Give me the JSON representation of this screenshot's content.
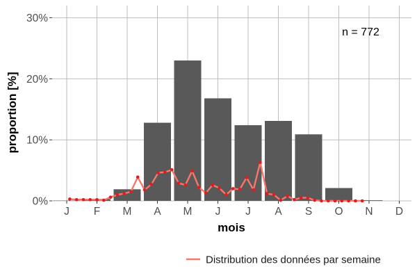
{
  "chart_data": {
    "type": "bar",
    "categories": [
      "J",
      "F",
      "M",
      "A",
      "M",
      "J",
      "J",
      "A",
      "S",
      "O",
      "N",
      "D"
    ],
    "values": [
      0.05,
      0.3,
      1.9,
      12.8,
      23.0,
      16.8,
      12.4,
      13.1,
      10.9,
      2.1,
      0.1,
      0
    ],
    "ylim": [
      0,
      32
    ],
    "yticks": [
      0,
      10,
      20,
      30
    ],
    "ytick_labels": [
      "0%",
      "10%",
      "20%",
      "30%"
    ],
    "xlabel": "mois",
    "ylabel": "proportion [%]",
    "annotation": "n = 772",
    "bar_color": "#595959",
    "grid": true,
    "legend_position": "bottom-right",
    "series": [
      {
        "name": "Distribution des données par semaine",
        "type": "line",
        "color": "#f8766d",
        "point_color": "#e41a1c",
        "x": [
          1.1,
          1.325,
          1.55,
          1.775,
          2.0,
          2.225,
          2.45,
          2.675,
          2.9,
          3.125,
          3.35,
          3.575,
          3.8,
          4.025,
          4.25,
          4.475,
          4.7,
          4.925,
          5.15,
          5.375,
          5.6,
          5.825,
          6.05,
          6.275,
          6.5,
          6.725,
          6.95,
          7.175,
          7.4,
          7.625,
          7.85,
          8.075,
          8.3,
          8.525,
          8.75,
          8.975,
          9.2,
          9.425,
          9.65,
          9.875,
          10.1,
          10.325,
          10.55,
          10.775
        ],
        "values": [
          0.3,
          0.2,
          0.2,
          0.2,
          0.2,
          0.1,
          0.6,
          1.0,
          1.2,
          1.5,
          3.9,
          1.8,
          2.7,
          4.6,
          4.7,
          5.1,
          2.9,
          2.6,
          4.9,
          2.2,
          1.3,
          2.6,
          2.1,
          1.0,
          2.0,
          1.9,
          3.8,
          1.8,
          6.3,
          1.2,
          1.0,
          0.1,
          0.8,
          0.2,
          0.5,
          0.5,
          0.1,
          0,
          0,
          0,
          0,
          0,
          0,
          0
        ]
      }
    ]
  }
}
